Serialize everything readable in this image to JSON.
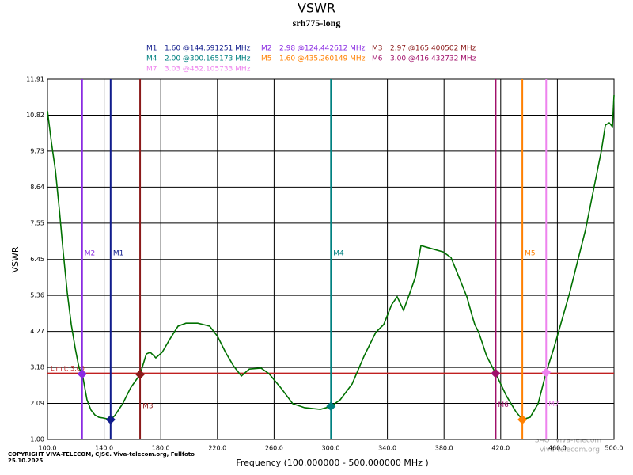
{
  "chart_data": {
    "type": "line",
    "title": "VSWR",
    "subtitle": "srh775-long",
    "x_label": "Frequency (100.000000 - 500.000000 MHz )",
    "y_label": "VSWR",
    "copyright": "COPYRIGHT VIVA-TELECOM, CJSC. Viva-telecom.org, Fullfoto",
    "date": "25.10.2025",
    "watermark": [
      "SAO \"Viva-Telecom\"",
      "viva-telecom.org"
    ],
    "grid": true,
    "xlim": [
      100,
      500
    ],
    "ylim": [
      1,
      11.91
    ],
    "xticks": [
      {
        "value": 100,
        "label": "100.0"
      },
      {
        "value": 140,
        "label": "140.0"
      },
      {
        "value": 180,
        "label": "180.0"
      },
      {
        "value": 220,
        "label": "220.0"
      },
      {
        "value": 260,
        "label": "260.0"
      },
      {
        "value": 300,
        "label": "300.0"
      },
      {
        "value": 340,
        "label": "340.0"
      },
      {
        "value": 380,
        "label": "380.0"
      },
      {
        "value": 420,
        "label": "420.0"
      },
      {
        "value": 460,
        "label": "460.0"
      },
      {
        "value": 500,
        "label": "500.0"
      }
    ],
    "yticks": [
      {
        "value": 1,
        "label": "1.00"
      },
      2.09,
      3.18,
      4.27,
      5.36,
      6.45,
      7.55,
      8.64,
      9.73,
      10.82,
      11.91
    ],
    "limit": {
      "label": "Limit: 3.00",
      "value": 3.0,
      "color": "#c02020"
    },
    "series": [
      {
        "name": "VSWR",
        "color": "#007000",
        "x": [
          100.0,
          102.8,
          105.6,
          108.4,
          111.2,
          114.0,
          116.8,
          119.6,
          122.3,
          124.6,
          127.9,
          130.7,
          133.5,
          136.3,
          139.1,
          144.6,
          147.5,
          153.1,
          158.7,
          165.4,
          169.8,
          172.6,
          176.5,
          181.0,
          186.6,
          192.2,
          197.8,
          206.1,
          214.5,
          220.1,
          225.7,
          231.3,
          236.9,
          242.5,
          250.8,
          256.4,
          264.8,
          273.2,
          281.6,
          292.7,
          300.2,
          306.7,
          315.1,
          323.5,
          331.8,
          337.4,
          343.0,
          346.9,
          351.4,
          355.9,
          359.8,
          363.7,
          371.0,
          379.3,
          384.9,
          390.5,
          396.1,
          400.0,
          401.7,
          404.5,
          410.1,
          416.4,
          424.0,
          430.7,
          435.3,
          440.8,
          446.4,
          452.1,
          457.5,
          463.1,
          468.7,
          474.3,
          479.9,
          485.5,
          491.1,
          493.9,
          496.6,
          498.9,
          500.0
        ],
        "values": [
          10.95,
          9.99,
          9.15,
          7.95,
          6.63,
          5.44,
          4.48,
          3.76,
          3.16,
          2.98,
          2.2,
          1.89,
          1.74,
          1.67,
          1.65,
          1.6,
          1.72,
          2.08,
          2.56,
          2.97,
          3.59,
          3.64,
          3.47,
          3.64,
          4.05,
          4.43,
          4.52,
          4.52,
          4.43,
          4.12,
          3.64,
          3.23,
          2.92,
          3.13,
          3.16,
          2.99,
          2.56,
          2.08,
          1.96,
          1.91,
          2.0,
          2.2,
          2.68,
          3.52,
          4.24,
          4.48,
          5.08,
          5.32,
          4.91,
          5.44,
          5.92,
          6.87,
          6.78,
          6.68,
          6.51,
          5.92,
          5.32,
          4.72,
          4.48,
          4.24,
          3.52,
          3.0,
          2.32,
          1.84,
          1.6,
          1.67,
          2.08,
          3.03,
          3.76,
          4.6,
          5.44,
          6.4,
          7.35,
          8.55,
          9.75,
          10.52,
          10.59,
          10.47,
          11.43
        ]
      }
    ],
    "markers": [
      {
        "name": "M1",
        "label": "1.60 @144.591251 MHz",
        "x": 144.591251,
        "y": 1.6,
        "color": "#101c8c"
      },
      {
        "name": "M2",
        "label": "2.98 @124.442612 MHz",
        "x": 124.442612,
        "y": 2.98,
        "color": "#8a2be2"
      },
      {
        "name": "M3",
        "label": "2.97 @165.400502 MHz",
        "x": 165.400502,
        "y": 2.97,
        "color": "#8b1a1a"
      },
      {
        "name": "M4",
        "label": "2.00 @300.165173 MHz",
        "x": 300.165173,
        "y": 2.0,
        "color": "#008080"
      },
      {
        "name": "M5",
        "label": "1.60 @435.260149 MHz",
        "x": 435.260149,
        "y": 1.6,
        "color": "#ff8000"
      },
      {
        "name": "M6",
        "label": "3.00 @416.432732 MHz",
        "x": 416.432732,
        "y": 3.0,
        "color": "#a0106a"
      },
      {
        "name": "M7",
        "label": "3.03 @452.105733 MHz",
        "x": 452.105733,
        "y": 3.03,
        "color": "#ee82ee"
      }
    ]
  }
}
